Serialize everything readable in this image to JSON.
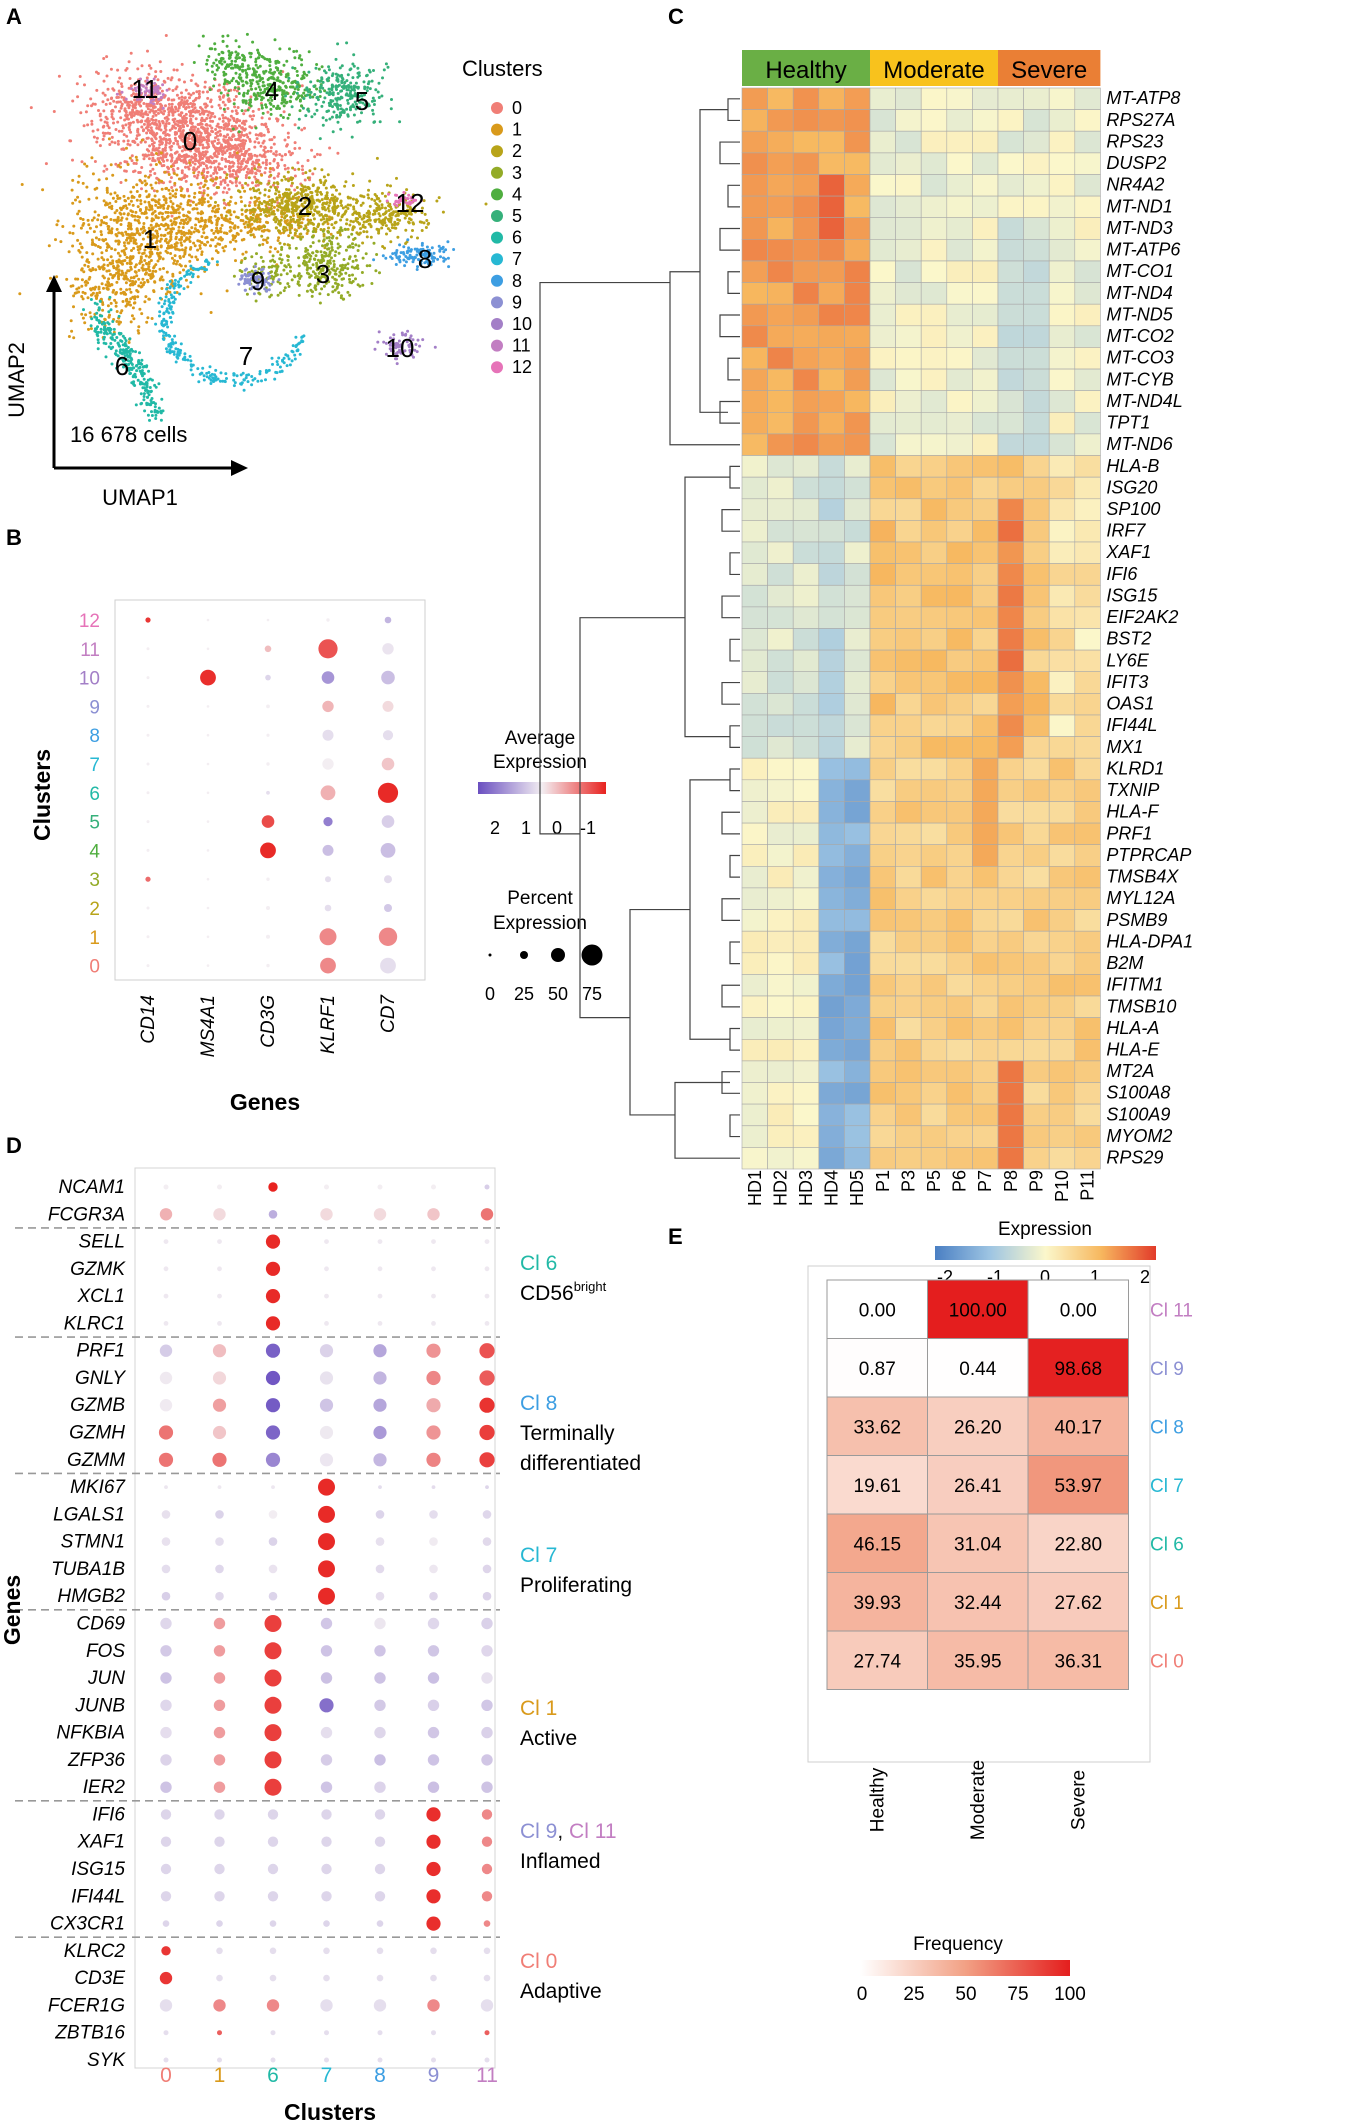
{
  "colors": {
    "cluster": {
      "0": "#f07e76",
      "1": "#d99a1b",
      "2": "#b8a419",
      "3": "#93ab27",
      "4": "#4fae3f",
      "5": "#35b07a",
      "6": "#21b9a6",
      "7": "#27b8d3",
      "8": "#3d9ee2",
      "9": "#8c90d3",
      "10": "#a37fc7",
      "11": "#c27ec2",
      "12": "#e673b8"
    },
    "healthy": "#6aaf45",
    "moderate": "#f8c21d",
    "severe": "#ea7f35"
  },
  "panelA": {
    "label": "A",
    "cell_count": "16 678 cells",
    "xlabel": "UMAP1",
    "ylabel": "UMAP2",
    "legend_title": "Clusters",
    "clusters": [
      "0",
      "1",
      "2",
      "3",
      "4",
      "5",
      "6",
      "7",
      "8",
      "9",
      "10",
      "11",
      "12"
    ],
    "cluster_labels": [
      {
        "id": "0",
        "text": "0"
      },
      {
        "id": "1",
        "text": "1"
      },
      {
        "id": "2",
        "text": "2"
      },
      {
        "id": "3",
        "text": "3"
      },
      {
        "id": "4",
        "text": "4"
      },
      {
        "id": "5",
        "text": "5"
      },
      {
        "id": "6",
        "text": "6"
      },
      {
        "id": "7",
        "text": "7"
      },
      {
        "id": "8",
        "text": "8"
      },
      {
        "id": "9",
        "text": "9"
      },
      {
        "id": "10",
        "text": "10"
      },
      {
        "id": "11",
        "text": "11"
      },
      {
        "id": "12",
        "text": "12"
      }
    ]
  },
  "panelB": {
    "label": "B",
    "ylabel": "Clusters",
    "xlabel": "Genes",
    "genes": [
      "CD14",
      "MS4A1",
      "CD3G",
      "KLRF1",
      "CD7"
    ],
    "clusters": [
      "12",
      "11",
      "10",
      "9",
      "8",
      "7",
      "6",
      "5",
      "4",
      "3",
      "2",
      "1",
      "0"
    ],
    "legend_expr_title": "Average Expression",
    "legend_expr_ticks": [
      "2",
      "1",
      "0",
      "-1"
    ],
    "legend_pct_title": "Percent Expression",
    "legend_pct_ticks": [
      "0",
      "25",
      "50",
      "75"
    ]
  },
  "panelC": {
    "label": "C",
    "groups": [
      {
        "name": "Healthy",
        "n": 5
      },
      {
        "name": "Moderate",
        "n": 5
      },
      {
        "name": "Severe",
        "n": 4
      }
    ],
    "samples": [
      "HD1",
      "HD2",
      "HD3",
      "HD4",
      "HD5",
      "P1",
      "P3",
      "P5",
      "P6",
      "P7",
      "P8",
      "P9",
      "P10",
      "P11"
    ],
    "genes": [
      "MT-ATP8",
      "RPS27A",
      "RPS23",
      "DUSP2",
      "NR4A2",
      "MT-ND1",
      "MT-ND3",
      "MT-ATP6",
      "MT-CO1",
      "MT-ND4",
      "MT-ND5",
      "MT-CO2",
      "MT-CO3",
      "MT-CYB",
      "MT-ND4L",
      "TPT1",
      "MT-ND6",
      "HLA-B",
      "ISG20",
      "SP100",
      "IRF7",
      "XAF1",
      "IFI6",
      "ISG15",
      "EIF2AK2",
      "BST2",
      "LY6E",
      "IFIT3",
      "OAS1",
      "IFI44L",
      "MX1",
      "KLRD1",
      "TXNIP",
      "HLA-F",
      "PRF1",
      "PTPRCAP",
      "TMSB4X",
      "MYL12A",
      "PSMB9",
      "HLA-DPA1",
      "B2M",
      "IFITM1",
      "TMSB10",
      "HLA-A",
      "HLA-E",
      "MT2A",
      "S100A8",
      "S100A9",
      "MYOM2",
      "RPS29"
    ],
    "legend_title": "Expression",
    "legend_ticks": [
      "-2",
      "-1",
      "0",
      "1",
      "2"
    ]
  },
  "panelD": {
    "label": "D",
    "ylabel": "Genes",
    "xlabel": "Clusters",
    "clusters": [
      "0",
      "1",
      "6",
      "7",
      "8",
      "9",
      "11"
    ],
    "genes": [
      "NCAM1",
      "FCGR3A",
      "SELL",
      "GZMK",
      "XCL1",
      "KLRC1",
      "PRF1",
      "GNLY",
      "GZMB",
      "GZMH",
      "GZMM",
      "MKI67",
      "LGALS1",
      "STMN1",
      "TUBA1B",
      "HMGB2",
      "CD69",
      "FOS",
      "JUN",
      "JUNB",
      "NFKBIA",
      "ZFP36",
      "IER2",
      "IFI6",
      "XAF1",
      "ISG15",
      "IFI44L",
      "CX3CR1",
      "KLRC2",
      "CD3E",
      "FCER1G",
      "ZBTB16",
      "SYK"
    ],
    "annotations": [
      {
        "cl": "Cl 6",
        "desc": "CD56",
        "sup": "bright"
      },
      {
        "cl": "Cl 8",
        "desc": "Terminally",
        "desc2": "differentiated"
      },
      {
        "cl": "Cl 7",
        "desc": "Proliferating"
      },
      {
        "cl": "Cl 1",
        "desc": "Active"
      },
      {
        "cl": "Cl 9",
        "sep": ", ",
        "cl2": "Cl 11",
        "desc": "Inflamed"
      },
      {
        "cl": "Cl 0",
        "desc": "Adaptive"
      }
    ]
  },
  "panelE": {
    "label": "E",
    "columns": [
      "Healthy",
      "Moderate",
      "Severe"
    ],
    "rows": [
      {
        "cluster": "Cl 11",
        "values": [
          "0.00",
          "100.00",
          "0.00"
        ]
      },
      {
        "cluster": "Cl 9",
        "values": [
          "0.87",
          "0.44",
          "98.68"
        ]
      },
      {
        "cluster": "Cl 8",
        "values": [
          "33.62",
          "26.20",
          "40.17"
        ]
      },
      {
        "cluster": "Cl 7",
        "values": [
          "19.61",
          "26.41",
          "53.97"
        ]
      },
      {
        "cluster": "Cl 6",
        "values": [
          "46.15",
          "31.04",
          "22.80"
        ]
      },
      {
        "cluster": "Cl 1",
        "values": [
          "39.93",
          "32.44",
          "27.62"
        ]
      },
      {
        "cluster": "Cl 0",
        "values": [
          "27.74",
          "35.95",
          "36.31"
        ]
      }
    ],
    "legend_title": "Frequency",
    "legend_ticks": [
      "0",
      "25",
      "50",
      "75",
      "100"
    ]
  }
}
